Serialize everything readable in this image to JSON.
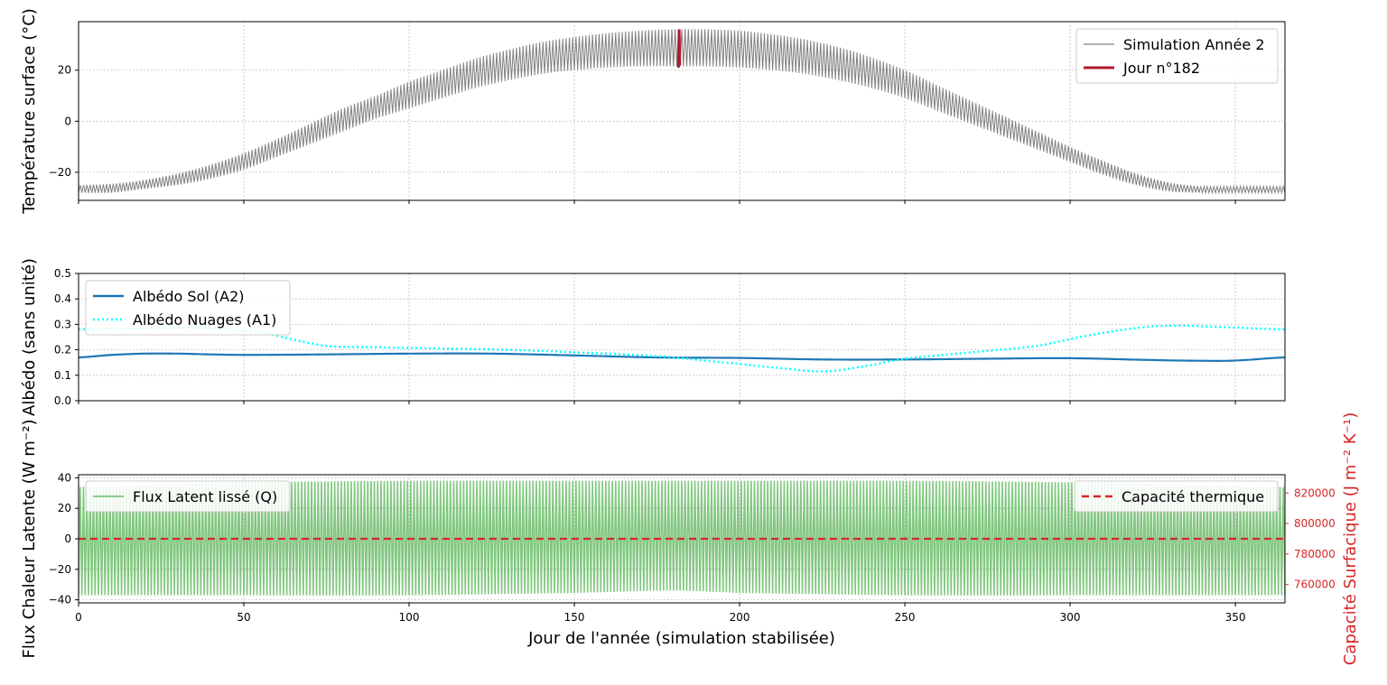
{
  "chart_data": [
    {
      "type": "line",
      "ylabel": "Température surface (°C)",
      "xlim": [
        0,
        365
      ],
      "ylim": [
        -31,
        39
      ],
      "xticks": [
        0,
        50,
        100,
        150,
        200,
        250,
        300,
        350
      ],
      "yticks": [
        -20,
        0,
        20
      ],
      "ytick_labels": [
        "−20",
        "0",
        "20"
      ],
      "grid": true,
      "legend": "top-right",
      "series": [
        {
          "name": "Simulation Année 2",
          "color": "#808080",
          "kind": "daily-oscillation",
          "day": [
            0,
            10,
            20,
            30,
            40,
            50,
            60,
            70,
            80,
            90,
            100,
            110,
            120,
            130,
            140,
            150,
            160,
            170,
            180,
            190,
            200,
            210,
            220,
            230,
            240,
            250,
            260,
            270,
            280,
            290,
            300,
            310,
            320,
            330,
            340,
            350,
            365
          ],
          "min": [
            -28,
            -28,
            -26.5,
            -25,
            -22.5,
            -19,
            -14,
            -9,
            -4,
            1,
            5,
            9,
            13,
            16,
            18.5,
            20,
            21,
            21.5,
            21.5,
            21.5,
            21,
            20,
            18.5,
            16,
            13,
            9,
            4,
            -1,
            -6,
            -11,
            -16,
            -21,
            -25,
            -27.5,
            -28,
            -28,
            -28
          ],
          "max": [
            -25,
            -24.5,
            -23,
            -20.5,
            -17,
            -12.5,
            -7,
            -1,
            5,
            10,
            15.5,
            20,
            24.5,
            28,
            31,
            33,
            34.5,
            35.5,
            36,
            36,
            35.5,
            34,
            32,
            29,
            25,
            20,
            14,
            8,
            2,
            -4,
            -10,
            -15.5,
            -20.5,
            -24,
            -25.5,
            -25.5,
            -25.5
          ]
        },
        {
          "name": "Jour n°182",
          "color": "#b2182b",
          "x": [
            181.5,
            181.6,
            181.7,
            181.8,
            181.9
          ],
          "y": [
            21,
            27,
            36,
            30,
            22
          ]
        }
      ]
    },
    {
      "type": "line",
      "ylabel": "Albédo (sans unité)",
      "xlim": [
        0,
        365
      ],
      "ylim": [
        0.0,
        0.5
      ],
      "xticks": [
        0,
        50,
        100,
        150,
        200,
        250,
        300,
        350
      ],
      "yticks": [
        0.0,
        0.1,
        0.2,
        0.3,
        0.4,
        0.5
      ],
      "ytick_labels": [
        "0.0",
        "0.1",
        "0.2",
        "0.3",
        "0.4",
        "0.5"
      ],
      "grid": true,
      "legend": "top-left",
      "series": [
        {
          "name": "Albédo Sol (A2)",
          "color": "#1f77b4",
          "style": "solid",
          "x": [
            0,
            10,
            20,
            30,
            40,
            50,
            75,
            100,
            125,
            150,
            175,
            200,
            225,
            250,
            275,
            300,
            325,
            340,
            350,
            365
          ],
          "y": [
            0.17,
            0.18,
            0.185,
            0.185,
            0.182,
            0.18,
            0.182,
            0.185,
            0.185,
            0.178,
            0.17,
            0.168,
            0.162,
            0.162,
            0.165,
            0.167,
            0.16,
            0.157,
            0.158,
            0.17
          ]
        },
        {
          "name": "Albédo Nuages (A1)",
          "color": "#00ffff",
          "style": "dotted",
          "x": [
            0,
            20,
            40,
            55,
            65,
            75,
            90,
            110,
            130,
            150,
            175,
            200,
            215,
            225,
            235,
            250,
            270,
            290,
            305,
            320,
            330,
            345,
            365
          ],
          "y": [
            0.28,
            0.285,
            0.285,
            0.27,
            0.24,
            0.215,
            0.21,
            0.205,
            0.2,
            0.19,
            0.175,
            0.145,
            0.125,
            0.115,
            0.13,
            0.165,
            0.19,
            0.215,
            0.255,
            0.285,
            0.295,
            0.29,
            0.28
          ]
        }
      ]
    },
    {
      "type": "line",
      "ylabel": "Flux Chaleur Latente (W m⁻²)",
      "xlabel": "Jour de l'année (simulation stabilisée)",
      "xlim": [
        0,
        365
      ],
      "ylim": [
        -42,
        42
      ],
      "xticks": [
        0,
        50,
        100,
        150,
        200,
        250,
        300,
        350
      ],
      "yticks": [
        -40,
        -20,
        0,
        20,
        40
      ],
      "ytick_labels": [
        "−40",
        "−20",
        "0",
        "20",
        "40"
      ],
      "y2label": "Capacité Surfacique (J m⁻² K⁻¹)",
      "y2lim": [
        748000,
        832000
      ],
      "y2ticks": [
        760000,
        780000,
        800000,
        820000
      ],
      "y2tick_labels": [
        "760000",
        "780000",
        "800000",
        "820000"
      ],
      "grid": true,
      "legend_left": "top-left",
      "legend_right": "top-right",
      "series": [
        {
          "name": "Flux Latent lissé (Q)",
          "color": "#4daf4a",
          "kind": "daily-oscillation",
          "day": [
            0,
            50,
            100,
            150,
            180,
            200,
            250,
            300,
            365
          ],
          "min": [
            -37,
            -37,
            -37,
            -35.5,
            -34,
            -35.5,
            -37,
            -37,
            -37
          ],
          "max": [
            34,
            37,
            38,
            38,
            38,
            38,
            38,
            37,
            34
          ]
        },
        {
          "name": "Capacité thermique",
          "color": "#d62728",
          "style": "dashed",
          "axis": "right",
          "x": [
            0,
            365
          ],
          "y": [
            790000,
            790000
          ]
        }
      ]
    }
  ]
}
